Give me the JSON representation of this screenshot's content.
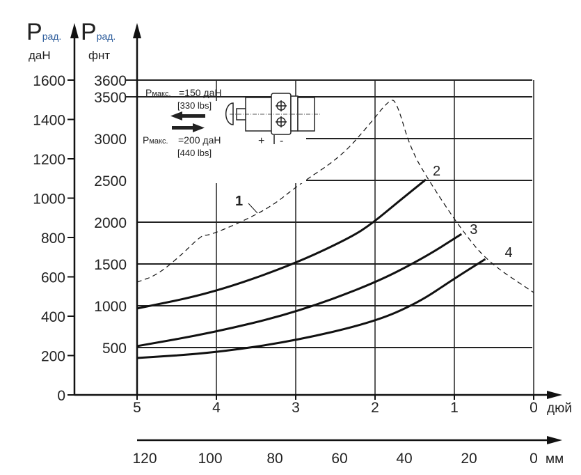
{
  "chart_data": {
    "type": "line",
    "y_axes": [
      {
        "symbol": "P",
        "subscript": "рад.",
        "unit": "даН",
        "ticks": [
          0,
          200,
          400,
          600,
          800,
          1000,
          1200,
          1400,
          1600
        ],
        "range": [
          0,
          1600
        ]
      },
      {
        "symbol": "P",
        "subscript": "рад.",
        "unit": "фнт",
        "ticks": [
          500,
          1000,
          1500,
          2000,
          2500,
          3000,
          3500,
          3600
        ],
        "range": [
          0,
          3600
        ]
      }
    ],
    "x_axes": [
      {
        "unit": "дюй",
        "ticks": [
          5,
          4,
          3,
          2,
          1,
          0
        ],
        "range": [
          5,
          0
        ]
      },
      {
        "unit": "мм",
        "ticks": [
          120,
          100,
          80,
          60,
          40,
          20,
          0
        ],
        "range": [
          127,
          0
        ]
      }
    ],
    "grid": true,
    "series": [
      {
        "name": "1",
        "style": "dashed",
        "x": [
          5,
          4.75,
          4.45,
          4.18,
          4.1,
          3.75,
          3.31,
          2.96,
          2.43,
          2.08,
          1.82,
          1.73,
          1.55,
          1.29,
          0.94,
          0.59,
          0
        ],
        "y": [
          1283,
          1367,
          1600,
          1850,
          1840,
          1975,
          2183,
          2450,
          2783,
          3158,
          3467,
          3450,
          2867,
          2450,
          1950,
          1533,
          1158
        ]
      },
      {
        "name": "2",
        "style": "solid",
        "x": [
          5,
          4.06,
          3.04,
          2.3,
          2.03,
          1.7,
          1.36
        ],
        "y": [
          967,
          1150,
          1490,
          1820,
          1990,
          2250,
          2510
        ]
      },
      {
        "name": "3",
        "style": "solid",
        "x": [
          5,
          4.06,
          3.04,
          2.03,
          1.38,
          0.91
        ],
        "y": [
          517,
          675,
          908,
          1258,
          1575,
          1858
        ]
      },
      {
        "name": "4",
        "style": "solid",
        "x": [
          5,
          4.06,
          3.04,
          2.03,
          1.46,
          1.0,
          0.61
        ],
        "y": [
          375,
          433,
          575,
          800,
          1033,
          1325,
          1558
        ]
      }
    ]
  },
  "inset": {
    "p_label": "P",
    "p_sub": "макс.",
    "load1": "=150 даН",
    "load1_lbs": "[330 lbs]",
    "load2": "=200 даН",
    "load2_lbs": "[440 lbs]",
    "plus": "+",
    "minus": "-"
  }
}
